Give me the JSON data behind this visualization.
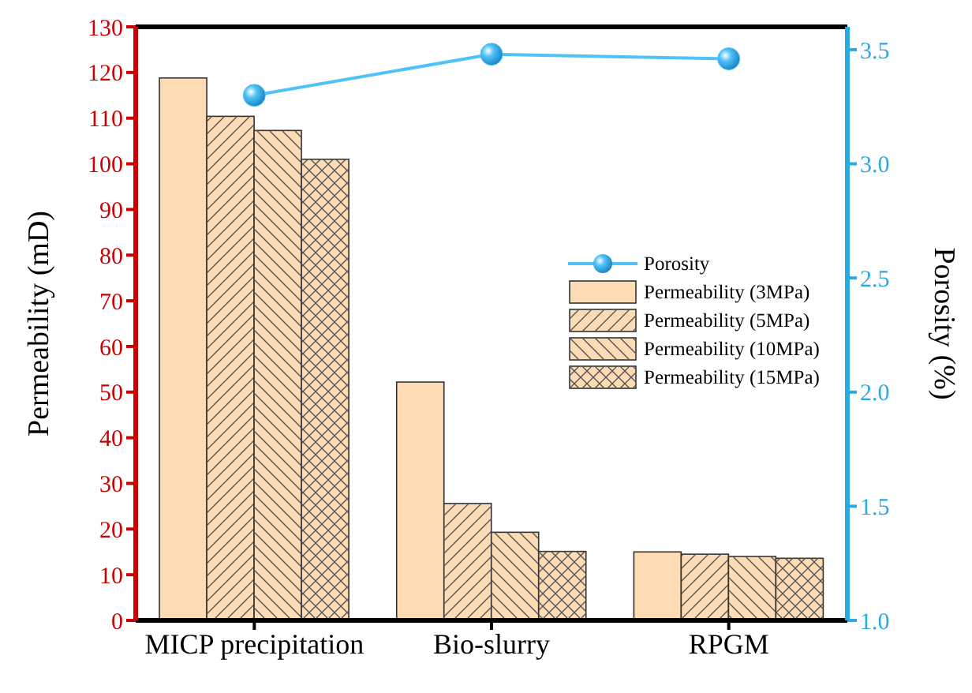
{
  "chart_data": {
    "type": "bar",
    "categories": [
      "MICP precipitation",
      "Bio-slurry",
      "RPGM"
    ],
    "ylabel": "Permeability (mD)",
    "y2label": "Porosity (%)",
    "ylim": [
      0,
      130
    ],
    "yticks": [
      0,
      10,
      20,
      30,
      40,
      50,
      60,
      70,
      80,
      90,
      100,
      110,
      120,
      130
    ],
    "y2lim": [
      1.0,
      3.6
    ],
    "y2ticks": [
      {
        "value": 1.0,
        "label": "1.0"
      },
      {
        "value": 1.5,
        "label": "1.5"
      },
      {
        "value": 2.0,
        "label": "2.0"
      },
      {
        "value": 2.5,
        "label": "2.5"
      },
      {
        "value": 3.0,
        "label": "3.0"
      },
      {
        "value": 3.5,
        "label": "3.5"
      }
    ],
    "legend": "right",
    "marker": "circle",
    "grid": false,
    "series": [
      {
        "name": "Porosity",
        "type": "line",
        "axis": "y2",
        "color": "#4fc3f7",
        "values": [
          3.3,
          3.48,
          3.46
        ]
      },
      {
        "name": "Permeability (3MPa)",
        "color": "#fddbb5",
        "values": [
          118.8,
          52.2,
          15.0
        ]
      },
      {
        "name": "Permeability (5MPa)",
        "color": "#fddbb5",
        "values": [
          110.4,
          25.6,
          14.5
        ]
      },
      {
        "name": "Permeability (10MPa)",
        "color": "#fddbb5",
        "values": [
          107.3,
          19.3,
          14.0
        ]
      },
      {
        "name": "Permeability (15MPa)",
        "color": "#fddbb5",
        "values": [
          101.0,
          15.1,
          13.6
        ]
      }
    ]
  }
}
